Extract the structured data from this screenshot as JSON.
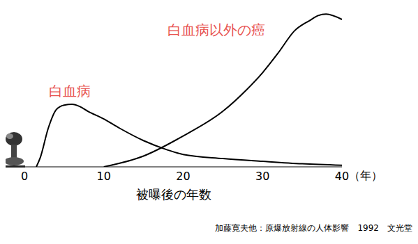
{
  "chart_data": {
    "type": "line",
    "x_label": "被曝後の年数",
    "x_unit": "（年）",
    "source": "加藤寛夫他：原爆放射線の人体影響　1992　文光堂",
    "xlim": [
      0,
      40
    ],
    "xticks": [
      0,
      10,
      20,
      30,
      40
    ],
    "ylim": [
      0,
      100
    ],
    "tick_labels": "x",
    "grid": false,
    "series": [
      {
        "name": "白血病",
        "color": "#000000",
        "x": [
          1.5,
          2,
          3,
          4,
          5,
          6,
          7,
          8,
          10,
          12,
          15,
          18,
          20,
          25,
          30,
          35,
          40
        ],
        "values": [
          0,
          6,
          25,
          37,
          40,
          40.5,
          39,
          36,
          31,
          25,
          17,
          11,
          8,
          5.4,
          3.6,
          2,
          1
        ]
      },
      {
        "name": "白血病以外の癌",
        "color": "#000000",
        "x": [
          10,
          15,
          20,
          25,
          28,
          30,
          32,
          34,
          36,
          37,
          38,
          40
        ],
        "values": [
          0,
          7,
          20,
          36,
          50,
          61,
          74,
          88,
          95,
          98,
          99,
          95.5
        ]
      }
    ]
  }
}
